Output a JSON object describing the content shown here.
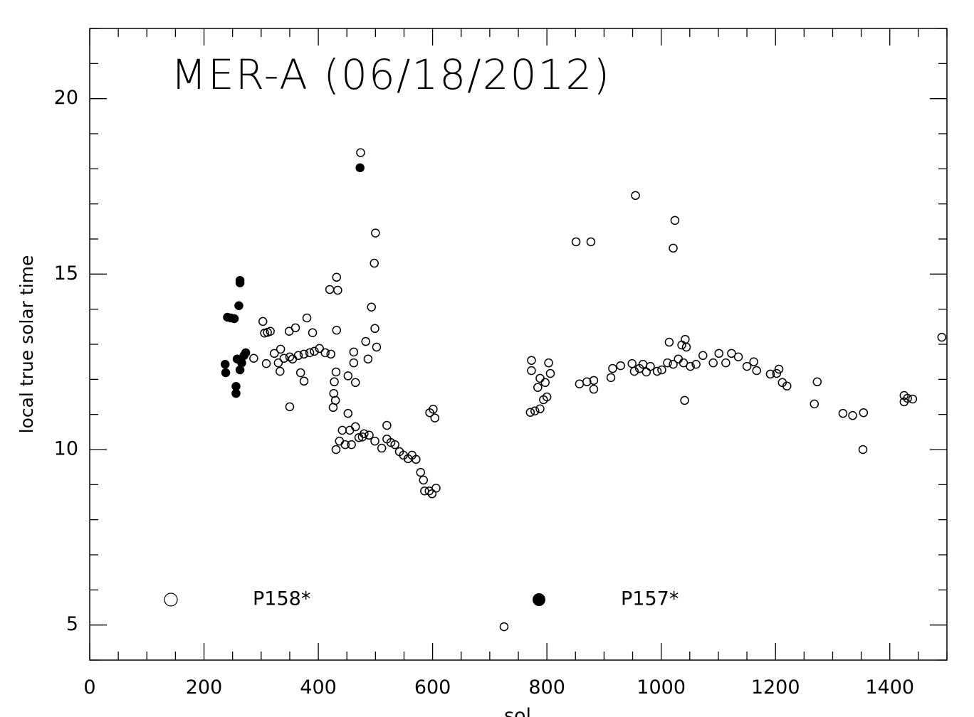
{
  "chart_data": {
    "type": "scatter",
    "title": "MER-A (06/18/2012)",
    "xlabel": "sol",
    "ylabel": "local true solar time",
    "xlim": [
      0,
      1500
    ],
    "ylim": [
      4,
      22
    ],
    "xticks": [
      0,
      200,
      400,
      600,
      800,
      1000,
      1200,
      1400
    ],
    "yticks": [
      5,
      10,
      15,
      20
    ],
    "x_minor_step": 50,
    "y_minor_step": 1,
    "grid": false,
    "legend_placement": "bottom",
    "series": [
      {
        "name": "P158*",
        "marker": "open-circle",
        "color": "#000000",
        "points": [
          [
            287,
            12.6
          ],
          [
            303,
            13.65
          ],
          [
            306,
            13.32
          ],
          [
            311,
            13.34
          ],
          [
            316,
            13.37
          ],
          [
            309,
            12.45
          ],
          [
            323,
            12.74
          ],
          [
            330,
            12.47
          ],
          [
            334,
            12.86
          ],
          [
            333,
            12.23
          ],
          [
            340,
            12.6
          ],
          [
            350,
            12.64
          ],
          [
            355,
            12.58
          ],
          [
            365,
            12.68
          ],
          [
            375,
            12.72
          ],
          [
            385,
            12.76
          ],
          [
            393,
            12.8
          ],
          [
            349,
            13.37
          ],
          [
            360,
            13.47
          ],
          [
            350,
            11.22
          ],
          [
            369,
            12.19
          ],
          [
            375,
            11.95
          ],
          [
            380,
            13.75
          ],
          [
            390,
            13.33
          ],
          [
            402,
            12.88
          ],
          [
            412,
            12.76
          ],
          [
            422,
            12.72
          ],
          [
            420,
            14.56
          ],
          [
            432,
            14.91
          ],
          [
            434,
            14.54
          ],
          [
            432,
            13.4
          ],
          [
            431,
            12.21
          ],
          [
            428,
            11.93
          ],
          [
            427,
            11.6
          ],
          [
            426,
            11.2
          ],
          [
            430,
            11.4
          ],
          [
            462,
            12.78
          ],
          [
            462,
            12.47
          ],
          [
            465,
            11.91
          ],
          [
            452,
            12.1
          ],
          [
            452,
            11.03
          ],
          [
            455,
            10.55
          ],
          [
            474,
            18.46
          ],
          [
            483,
            13.08
          ],
          [
            487,
            12.58
          ],
          [
            493,
            14.06
          ],
          [
            499,
            13.45
          ],
          [
            502,
            12.92
          ],
          [
            498,
            15.31
          ],
          [
            500,
            16.17
          ],
          [
            431,
            10.0
          ],
          [
            437,
            10.24
          ],
          [
            442,
            10.55
          ],
          [
            447,
            10.14
          ],
          [
            458,
            10.14
          ],
          [
            471,
            10.34
          ],
          [
            480,
            10.45
          ],
          [
            489,
            10.41
          ],
          [
            499,
            10.24
          ],
          [
            511,
            10.04
          ],
          [
            520,
            10.3
          ],
          [
            527,
            10.2
          ],
          [
            534,
            10.14
          ],
          [
            542,
            9.94
          ],
          [
            549,
            9.84
          ],
          [
            557,
            9.74
          ],
          [
            564,
            9.84
          ],
          [
            571,
            9.72
          ],
          [
            579,
            9.35
          ],
          [
            584,
            9.13
          ],
          [
            586,
            8.82
          ],
          [
            594,
            8.82
          ],
          [
            599,
            8.74
          ],
          [
            606,
            8.9
          ],
          [
            595,
            11.05
          ],
          [
            601,
            11.15
          ],
          [
            604,
            10.9
          ],
          [
            520,
            10.69
          ],
          [
            465,
            10.65
          ],
          [
            477,
            10.36
          ],
          [
            725,
            4.95
          ],
          [
            773,
            12.25
          ],
          [
            773,
            12.54
          ],
          [
            771,
            11.06
          ],
          [
            779,
            11.1
          ],
          [
            784,
            11.77
          ],
          [
            788,
            12.03
          ],
          [
            794,
            11.42
          ],
          [
            800,
            11.5
          ],
          [
            803,
            12.47
          ],
          [
            806,
            12.17
          ],
          [
            797,
            11.91
          ],
          [
            788,
            11.16
          ],
          [
            851,
            15.92
          ],
          [
            877,
            15.92
          ],
          [
            857,
            11.87
          ],
          [
            870,
            11.93
          ],
          [
            882,
            11.97
          ],
          [
            882,
            11.72
          ],
          [
            912,
            12.05
          ],
          [
            915,
            12.31
          ],
          [
            929,
            12.39
          ],
          [
            949,
            12.45
          ],
          [
            955,
            17.24
          ],
          [
            953,
            12.23
          ],
          [
            962,
            12.31
          ],
          [
            968,
            12.43
          ],
          [
            974,
            12.21
          ],
          [
            981,
            12.37
          ],
          [
            993,
            12.23
          ],
          [
            1001,
            12.27
          ],
          [
            1011,
            12.47
          ],
          [
            1014,
            13.06
          ],
          [
            1021,
            12.43
          ],
          [
            1024,
            16.53
          ],
          [
            1021,
            15.74
          ],
          [
            1030,
            12.58
          ],
          [
            1039,
            12.47
          ],
          [
            1042,
            13.14
          ],
          [
            1036,
            12.98
          ],
          [
            1044,
            12.92
          ],
          [
            1041,
            11.4
          ],
          [
            1051,
            12.37
          ],
          [
            1061,
            12.43
          ],
          [
            1073,
            12.68
          ],
          [
            1091,
            12.47
          ],
          [
            1101,
            12.74
          ],
          [
            1113,
            12.47
          ],
          [
            1123,
            12.74
          ],
          [
            1135,
            12.64
          ],
          [
            1150,
            12.37
          ],
          [
            1162,
            12.5
          ],
          [
            1167,
            12.25
          ],
          [
            1191,
            12.15
          ],
          [
            1202,
            12.17
          ],
          [
            1206,
            12.29
          ],
          [
            1212,
            11.91
          ],
          [
            1220,
            11.81
          ],
          [
            1268,
            11.3
          ],
          [
            1273,
            11.93
          ],
          [
            1318,
            11.03
          ],
          [
            1335,
            10.97
          ],
          [
            1354,
            11.05
          ],
          [
            1353,
            10.0
          ],
          [
            1425,
            11.54
          ],
          [
            1425,
            11.36
          ],
          [
            1431,
            11.46
          ],
          [
            1440,
            11.44
          ],
          [
            1491,
            13.2
          ]
        ]
      },
      {
        "name": "P157*",
        "marker": "filled-circle",
        "color": "#000000",
        "points": [
          [
            237,
            12.43
          ],
          [
            238,
            12.19
          ],
          [
            241,
            13.77
          ],
          [
            247,
            13.75
          ],
          [
            253,
            13.73
          ],
          [
            256,
            11.8
          ],
          [
            256,
            11.6
          ],
          [
            258,
            12.58
          ],
          [
            261,
            14.1
          ],
          [
            263,
            12.27
          ],
          [
            266,
            12.47
          ],
          [
            270,
            12.68
          ],
          [
            273,
            12.76
          ],
          [
            263,
            14.82
          ],
          [
            263,
            14.75
          ],
          [
            473,
            18.03
          ]
        ]
      }
    ]
  }
}
